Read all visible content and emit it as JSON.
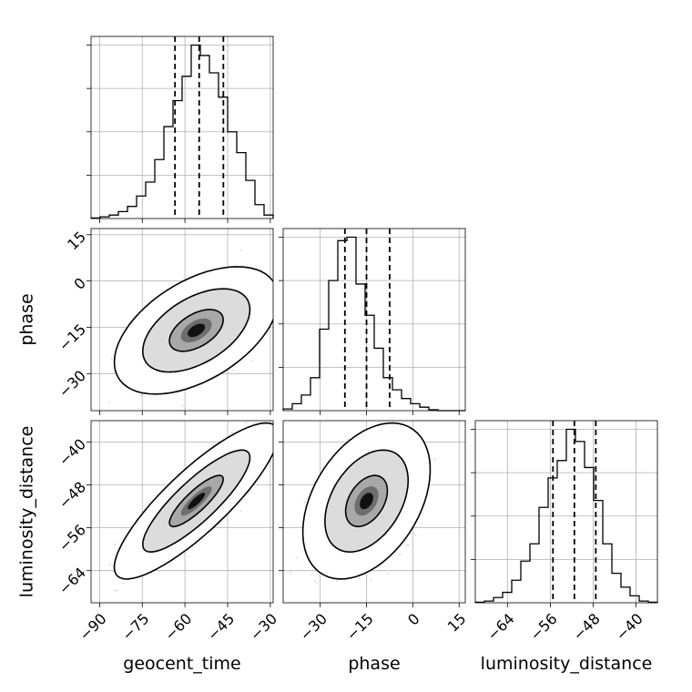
{
  "chart_data": {
    "type": "corner",
    "parameters": [
      "geocent_time",
      "phase",
      "luminosity_distance"
    ],
    "histogram_bins": 20,
    "grid": true,
    "colors": {
      "line": "#000000",
      "grid": "#b0b0b0",
      "points": "#808080"
    },
    "contour_levels": [
      0.39,
      0.86,
      0.99
    ],
    "panels": {
      "geocent_time": {
        "range": [
          -93,
          -29
        ],
        "ticks": [
          -90,
          -75,
          -60,
          -45,
          -30
        ],
        "tick_labels": [
          "−90",
          "−75",
          "−60",
          "−45",
          "−30"
        ],
        "quantiles": [
          -63.5,
          -55.0,
          -46.5
        ],
        "hist": [
          0.3,
          1,
          2,
          4,
          7,
          13,
          21,
          34,
          53,
          68,
          82,
          100,
          94,
          84,
          70,
          50,
          38,
          22,
          8,
          2
        ]
      },
      "phase": {
        "range": [
          -42,
          17
        ],
        "ticks": [
          -30,
          -15,
          0,
          15
        ],
        "tick_labels": [
          "−30",
          "−15",
          "0",
          "15"
        ],
        "quantiles": [
          -22.0,
          -15.0,
          -7.5
        ],
        "hist": [
          1,
          4,
          9,
          19,
          47,
          75,
          98,
          100,
          73,
          55,
          36,
          19,
          12,
          7,
          4,
          2,
          0.5,
          0,
          0,
          0
        ]
      },
      "luminosity_distance": {
        "range": [
          -70,
          -36
        ],
        "ticks": [
          -64,
          -56,
          -48,
          -40
        ],
        "tick_labels": [
          "−64",
          "−56",
          "−48",
          "−40"
        ],
        "quantiles": [
          -55.5,
          -51.5,
          -47.5
        ],
        "hist": [
          0.3,
          1,
          3,
          6,
          13,
          24,
          34,
          55,
          72,
          82,
          100,
          93,
          78,
          59,
          34,
          17,
          9,
          4,
          1,
          0.3
        ]
      }
    },
    "pairs": [
      {
        "x": "geocent_time",
        "y": "phase",
        "mean": [
          -56,
          -16
        ],
        "sd": [
          9.5,
          6.8
        ],
        "correlation": 0.5
      },
      {
        "x": "geocent_time",
        "y": "luminosity_distance",
        "mean": [
          -56,
          -51
        ],
        "sd": [
          9.5,
          4.8
        ],
        "correlation": 0.85
      },
      {
        "x": "phase",
        "y": "luminosity_distance",
        "mean": [
          -15,
          -51
        ],
        "sd": [
          6.8,
          4.8
        ],
        "correlation": 0.4
      }
    ]
  }
}
